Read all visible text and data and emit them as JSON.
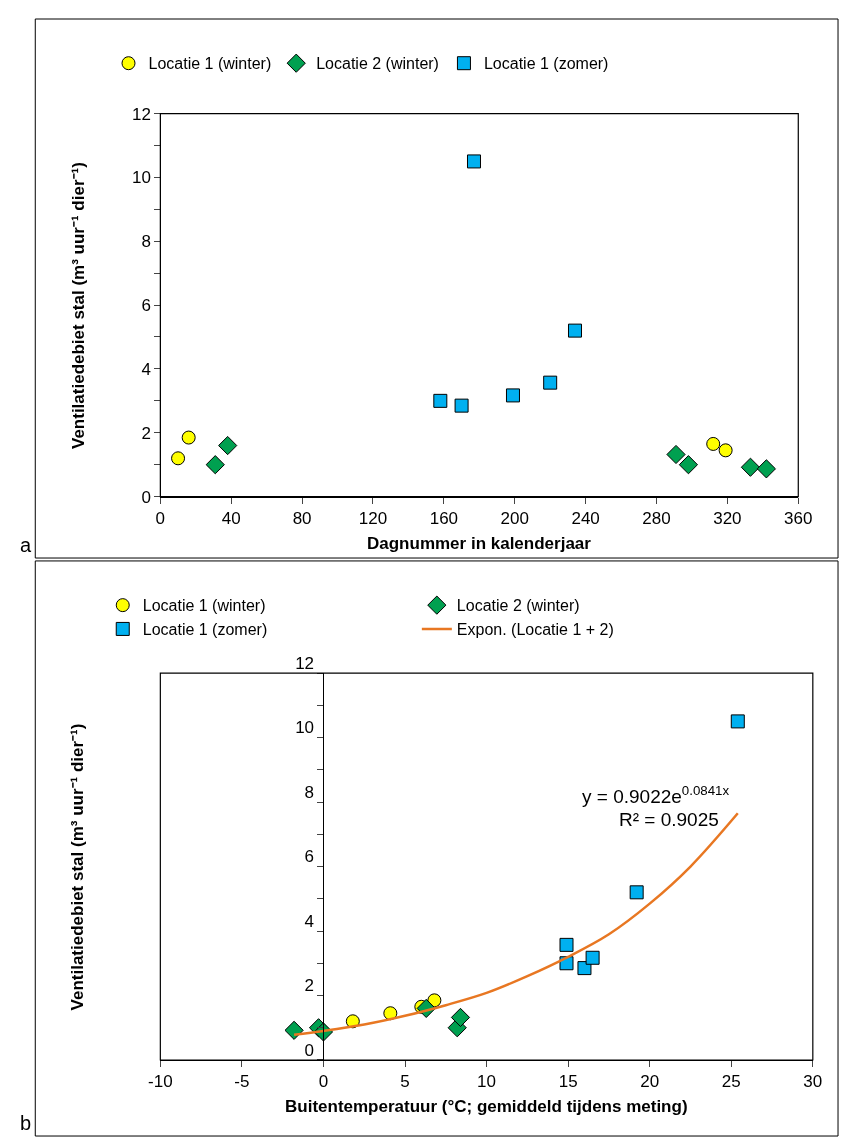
{
  "chart_data": [
    {
      "type": "scatter",
      "xlabel": "Dagnummer in kalenderjaar",
      "ylabel": "Ventilatiedebiet stal (m³ uur⁻¹ dier⁻¹)",
      "xlim": [
        0,
        360
      ],
      "xticks": [
        0,
        40,
        80,
        120,
        160,
        200,
        240,
        280,
        320,
        360
      ],
      "ylim": [
        0,
        12
      ],
      "yticks": [
        0,
        {
          "value": 1,
          "label": null
        },
        2,
        {
          "value": 3,
          "label": null
        },
        4,
        {
          "value": 5,
          "label": null
        },
        6,
        {
          "value": 7,
          "label": null
        },
        8,
        {
          "value": 9,
          "label": null
        },
        10,
        {
          "value": 11,
          "label": null
        },
        12
      ],
      "grid": false,
      "legend": "top",
      "annotations": [
        "a"
      ],
      "series": [
        {
          "name": "Locatie 1 (winter)",
          "color": "#ffff00",
          "marker": "circle",
          "x": [
            10,
            16,
            312,
            319
          ],
          "values": [
            1.2,
            1.85,
            1.65,
            1.45
          ]
        },
        {
          "name": "Locatie 2 (winter)",
          "color": "#00a050",
          "marker": "diamond",
          "x": [
            31,
            38,
            291,
            298,
            333,
            342
          ],
          "values": [
            1.0,
            1.6,
            1.32,
            1.0,
            0.92,
            0.87
          ]
        },
        {
          "name": "Locatie 1 (zomer)",
          "color": "#00b0f0",
          "marker": "square",
          "x": [
            158,
            170,
            177,
            199,
            220,
            234
          ],
          "values": [
            3.0,
            2.85,
            10.5,
            3.17,
            3.57,
            5.2
          ]
        }
      ]
    },
    {
      "type": "scatter",
      "xlabel": "Buitentemperatuur (°C; gemiddeld tijdens meting)",
      "ylabel": "Ventilatiedebiet stal (m³ uur⁻¹ dier⁻¹)",
      "xlim": [
        -10,
        30
      ],
      "xticks": [
        -10,
        -5,
        0,
        5,
        10,
        15,
        20,
        25,
        30
      ],
      "ylim": [
        0,
        12
      ],
      "yticks": [
        0,
        {
          "value": 1,
          "label": null
        },
        2,
        {
          "value": 3,
          "label": null
        },
        4,
        {
          "value": 5,
          "label": null
        },
        6,
        {
          "value": 7,
          "label": null
        },
        8,
        {
          "value": 9,
          "label": null
        },
        10,
        {
          "value": 11,
          "label": null
        },
        12
      ],
      "grid": false,
      "legend": "top",
      "annotations": [
        "b",
        "y = 0.9022e$^{0.0841x}$",
        "R² = 0.9025"
      ],
      "series": [
        {
          "name": "Locatie 1 (winter)",
          "color": "#ffff00",
          "marker": "circle",
          "x": [
            1.8,
            4.1,
            6.0,
            6.8
          ],
          "values": [
            1.2,
            1.45,
            1.65,
            1.85
          ]
        },
        {
          "name": "Locatie 2 (winter)",
          "color": "#00a050",
          "marker": "diamond",
          "x": [
            -1.8,
            -0.3,
            0,
            6.3,
            8.2,
            8.4
          ],
          "values": [
            0.92,
            1.0,
            0.87,
            1.6,
            1.0,
            1.32
          ]
        },
        {
          "name": "Locatie 1 (zomer)",
          "color": "#00b0f0",
          "marker": "square",
          "x": [
            14.9,
            14.9,
            16.0,
            16.5,
            19.2,
            25.4
          ],
          "values": [
            3.57,
            3.0,
            2.85,
            3.17,
            5.2,
            10.5
          ]
        },
        {
          "name": "Expon. (Locatie 1 + 2)",
          "color": "#e87722",
          "type": "line",
          "marker": "none",
          "line_style": "solid",
          "x": [
            -1.8,
            0,
            2.5,
            5,
            7.5,
            10,
            12.5,
            15,
            17.5,
            20,
            22.5,
            25.4
          ],
          "values": [
            0.78,
            0.9,
            1.1,
            1.37,
            1.7,
            2.08,
            2.6,
            3.2,
            3.9,
            4.85,
            6.0,
            7.65
          ]
        }
      ]
    }
  ]
}
